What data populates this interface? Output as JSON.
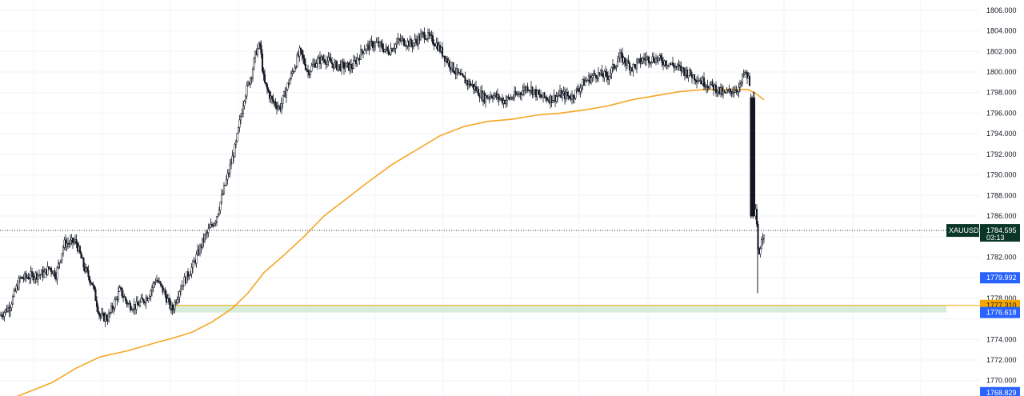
{
  "chart_data": {
    "type": "candlestick",
    "symbol": "XAUUSD",
    "last_price": 1784.595,
    "countdown": "03:13",
    "y_axis": {
      "min": 1768.5,
      "max": 1807.0,
      "ticks": [
        "1806.000",
        "1804.000",
        "1802.000",
        "1800.000",
        "1798.000",
        "1796.000",
        "1794.000",
        "1792.000",
        "1790.000",
        "1788.000",
        "1786.000",
        "1782.000",
        "1778.000",
        "1774.000",
        "1772.000",
        "1770.000"
      ]
    },
    "price_tags": [
      {
        "label": "1779.992",
        "value": 1779.992,
        "color": "#2962ff"
      },
      {
        "label": "1777.310",
        "value": 1777.31,
        "color": "#f7a600"
      },
      {
        "label": "1776.618",
        "value": 1776.618,
        "color": "#2962ff"
      },
      {
        "label": "1768.829",
        "value": 1768.829,
        "color": "#2962ff"
      }
    ],
    "support_zone": {
      "top": 1777.31,
      "bottom": 1776.618,
      "color": "#c8e6c9"
    },
    "support_line": {
      "value": 1777.31,
      "color": "#f7a600"
    },
    "price_path": [
      [
        0,
        1776.3
      ],
      [
        12,
        1777.2
      ],
      [
        25,
        1779.9
      ],
      [
        40,
        1780.2
      ],
      [
        55,
        1780.4
      ],
      [
        62,
        1781.0
      ],
      [
        70,
        1780.3
      ],
      [
        80,
        1783.3
      ],
      [
        95,
        1783.5
      ],
      [
        105,
        1781.0
      ],
      [
        115,
        1779.5
      ],
      [
        125,
        1776.2
      ],
      [
        135,
        1776.1
      ],
      [
        150,
        1778.8
      ],
      [
        160,
        1777.4
      ],
      [
        170,
        1777.2
      ],
      [
        185,
        1778.2
      ],
      [
        195,
        1779.9
      ],
      [
        205,
        1778.6
      ],
      [
        215,
        1776.8
      ],
      [
        225,
        1779.0
      ],
      [
        240,
        1781.0
      ],
      [
        255,
        1783.8
      ],
      [
        270,
        1785.8
      ],
      [
        285,
        1790.0
      ],
      [
        295,
        1793.0
      ],
      [
        305,
        1797.5
      ],
      [
        315,
        1800.0
      ],
      [
        320,
        1802.0
      ],
      [
        325,
        1802.6
      ],
      [
        330,
        1799.0
      ],
      [
        340,
        1797.2
      ],
      [
        350,
        1796.5
      ],
      [
        360,
        1798.8
      ],
      [
        375,
        1802.0
      ],
      [
        385,
        1800.0
      ],
      [
        395,
        1801.0
      ],
      [
        405,
        1801.3
      ],
      [
        420,
        1800.6
      ],
      [
        440,
        1800.5
      ],
      [
        455,
        1802.3
      ],
      [
        470,
        1802.8
      ],
      [
        485,
        1802.0
      ],
      [
        500,
        1803.1
      ],
      [
        515,
        1802.7
      ],
      [
        530,
        1803.7
      ],
      [
        545,
        1802.8
      ],
      [
        560,
        1801.0
      ],
      [
        575,
        1799.5
      ],
      [
        590,
        1798.7
      ],
      [
        605,
        1797.5
      ],
      [
        615,
        1797.8
      ],
      [
        630,
        1797.2
      ],
      [
        645,
        1797.7
      ],
      [
        660,
        1798.6
      ],
      [
        675,
        1797.6
      ],
      [
        690,
        1797.4
      ],
      [
        700,
        1797.8
      ],
      [
        715,
        1797.6
      ],
      [
        730,
        1799.0
      ],
      [
        745,
        1799.8
      ],
      [
        760,
        1799.6
      ],
      [
        775,
        1801.5
      ],
      [
        790,
        1800.4
      ],
      [
        805,
        1801.3
      ],
      [
        820,
        1801.3
      ],
      [
        835,
        1800.9
      ],
      [
        850,
        1800.3
      ],
      [
        865,
        1799.7
      ],
      [
        880,
        1799.0
      ],
      [
        895,
        1798.4
      ],
      [
        905,
        1797.8
      ],
      [
        915,
        1798.2
      ],
      [
        925,
        1798.5
      ],
      [
        930,
        1799.9
      ],
      [
        936,
        1799.3
      ],
      [
        940,
        1797.0
      ],
      [
        942,
        1785.0
      ],
      [
        945,
        1786.5
      ],
      [
        948,
        1781.7
      ],
      [
        952,
        1784.0
      ],
      [
        956,
        1784.6
      ]
    ],
    "moving_average": {
      "color": "#f5a623",
      "points": [
        [
          0,
          1767.8
        ],
        [
          65,
          1769.8
        ],
        [
          95,
          1771.2
        ],
        [
          125,
          1772.3
        ],
        [
          160,
          1772.9
        ],
        [
          200,
          1773.8
        ],
        [
          215,
          1774.1
        ],
        [
          240,
          1774.7
        ],
        [
          265,
          1775.7
        ],
        [
          290,
          1777.0
        ],
        [
          310,
          1778.5
        ],
        [
          330,
          1780.5
        ],
        [
          355,
          1782.2
        ],
        [
          380,
          1784.0
        ],
        [
          405,
          1786.0
        ],
        [
          430,
          1787.5
        ],
        [
          460,
          1789.3
        ],
        [
          490,
          1791.0
        ],
        [
          520,
          1792.4
        ],
        [
          550,
          1793.8
        ],
        [
          580,
          1794.7
        ],
        [
          610,
          1795.2
        ],
        [
          640,
          1795.4
        ],
        [
          670,
          1795.8
        ],
        [
          700,
          1796.0
        ],
        [
          730,
          1796.3
        ],
        [
          760,
          1796.7
        ],
        [
          790,
          1797.3
        ],
        [
          820,
          1797.7
        ],
        [
          850,
          1798.1
        ],
        [
          880,
          1798.3
        ],
        [
          910,
          1798.3
        ],
        [
          935,
          1798.3
        ],
        [
          945,
          1797.9
        ],
        [
          955,
          1797.3
        ]
      ]
    }
  }
}
